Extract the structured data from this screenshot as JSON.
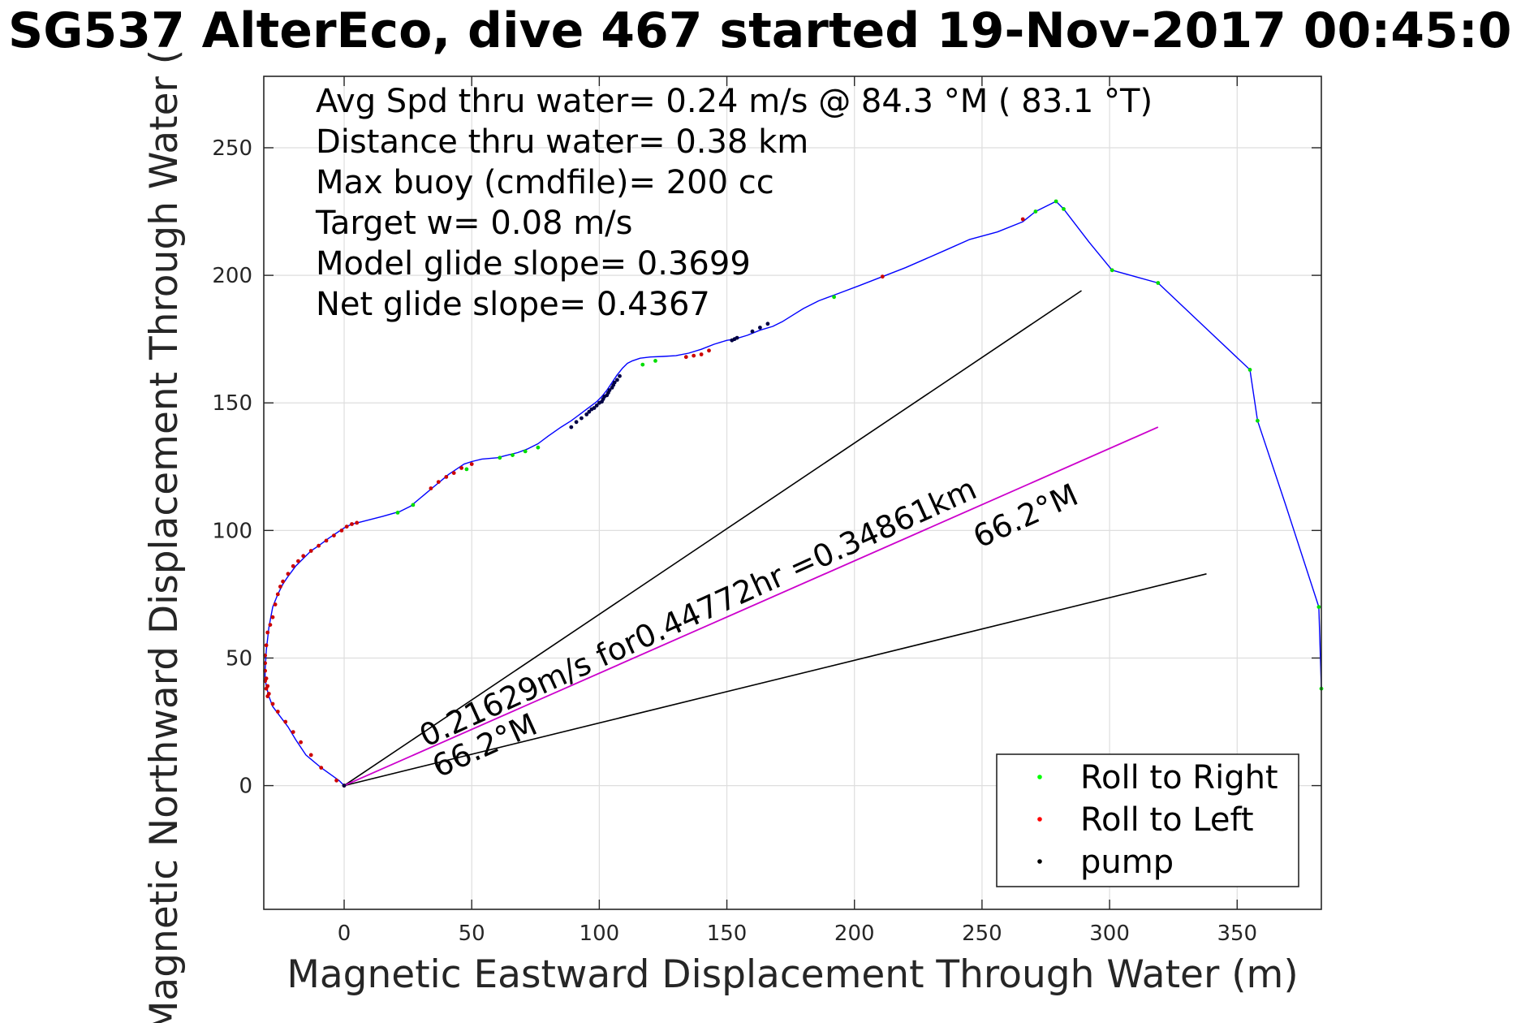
{
  "chart_data": {
    "type": "line",
    "title": "SG537 AlterEco, dive 467 started 19-Nov-2017 00:45:0",
    "xlabel": "Magnetic Eastward Displacement Through Water (m)",
    "ylabel": "Magnetic Northward Displacement Through Water (",
    "xlim": [
      -31.5,
      383
    ],
    "ylim": [
      -48.5,
      278
    ],
    "xticks": [
      0,
      50,
      100,
      150,
      200,
      250,
      300,
      350
    ],
    "yticks": [
      0,
      50,
      100,
      150,
      200,
      250
    ],
    "grid": true,
    "info_lines": [
      "Avg Spd thru water=  0.24 m/s @  84.3 °M ( 83.1 °T)",
      "Distance thru water=  0.38 km",
      "Max buoy (cmdfile)= 200 cc",
      "Target w= 0.08 m/s",
      "Model glide slope= 0.3699",
      "Net glide slope= 0.4367"
    ],
    "annotations": [
      {
        "text": "0.21629m/s for0.44772hr =0.34861km",
        "x": 32,
        "y": 15,
        "angle_deg": -24.4
      },
      {
        "text": "66.2°M",
        "x": 37,
        "y": 3,
        "angle_deg": -24.4
      },
      {
        "text": "66.2°M",
        "x": 249,
        "y": 93,
        "angle_deg": -24.4
      }
    ],
    "legend": {
      "position": "bottom-right",
      "entries": [
        {
          "label": "Roll to Right",
          "color": "#00ff00"
        },
        {
          "label": "Roll to Left",
          "color": "#ff0000"
        },
        {
          "label": "pump",
          "color": "#000000"
        }
      ]
    },
    "colors": {
      "track": "#0000ff",
      "net_heading": "#cc00cc",
      "cone": "#000000"
    },
    "series": [
      {
        "role": "track",
        "x": [
          0,
          -2,
          -9,
          -15,
          -19,
          -22,
          -25,
          -28,
          -29.5,
          -30.5,
          -31,
          -31,
          -30.5,
          -29.5,
          -28,
          -26,
          -24,
          -22,
          -19,
          -16,
          -13,
          -10,
          -6,
          -3,
          0,
          3,
          6,
          15,
          22,
          26,
          29,
          32,
          35,
          38,
          41,
          44,
          47,
          50,
          54,
          60,
          64,
          68,
          72,
          76,
          80,
          85,
          89,
          91,
          93,
          95,
          97,
          99,
          101,
          103,
          105,
          107,
          109,
          111,
          113,
          116,
          120,
          125,
          130,
          135,
          140,
          145,
          150,
          153,
          158,
          163,
          168,
          172,
          176,
          180,
          186,
          194,
          202,
          211,
          220,
          228,
          236,
          245,
          256,
          266,
          271,
          279,
          282,
          292,
          301,
          319,
          337,
          355,
          358,
          369,
          382,
          383
        ],
        "y": [
          0,
          2,
          7,
          12,
          18,
          23,
          27,
          31,
          35,
          39,
          42,
          45,
          53,
          62,
          70,
          75,
          79,
          82,
          86,
          89,
          92,
          94,
          97,
          99,
          101,
          102.5,
          103.2,
          105.5,
          107.5,
          109.5,
          112,
          114.5,
          117,
          119.5,
          122,
          124,
          126,
          127,
          128,
          128.5,
          129.5,
          130.5,
          132,
          134,
          137,
          140.5,
          143,
          144.5,
          146,
          147.5,
          149,
          150.5,
          152.5,
          155,
          158,
          161,
          163.5,
          165.5,
          166.5,
          167.5,
          168,
          168.2,
          168.5,
          169.5,
          171,
          173,
          174.5,
          175,
          176.5,
          178.5,
          180,
          182,
          184.5,
          187,
          190,
          193,
          196,
          199.5,
          203,
          206.5,
          210,
          214,
          217,
          221,
          225,
          229,
          226,
          213,
          202,
          197,
          180,
          163,
          143,
          110,
          70,
          38
        ]
      },
      {
        "role": "roll_right",
        "x": [
          21,
          27,
          48,
          61,
          66,
          71,
          76,
          117,
          122,
          192,
          271,
          279,
          282,
          301,
          319,
          355,
          358,
          382,
          383
        ],
        "y": [
          107,
          110,
          124,
          128.5,
          129.5,
          131,
          132.5,
          165,
          166.5,
          191.5,
          225,
          229,
          226,
          202,
          197,
          163,
          143,
          70,
          38
        ]
      },
      {
        "role": "roll_left",
        "x": [
          -31,
          -31,
          -31,
          -30.5,
          -30.5,
          -30,
          -30,
          -29.5,
          -29,
          -28,
          -27,
          -26,
          -25,
          -24,
          -22,
          -20,
          -18,
          -16,
          -13,
          -10,
          -7,
          -4,
          -1,
          1,
          3,
          5,
          -3,
          -9,
          -13,
          -17,
          -20,
          -23,
          -26,
          -28,
          -30,
          -30.5,
          -31,
          34,
          37,
          40,
          43,
          46,
          50,
          134,
          137,
          140,
          143,
          211,
          266,
          0
        ],
        "y": [
          48,
          51,
          45,
          42,
          55,
          39,
          60,
          36,
          63,
          66,
          71,
          75,
          78,
          80,
          83,
          86,
          88,
          90,
          92,
          94,
          96,
          98,
          100,
          101.5,
          102.5,
          103,
          2,
          7,
          12,
          17,
          21,
          25,
          29,
          32,
          35,
          38,
          41,
          116.5,
          119,
          121,
          122.5,
          124.5,
          126,
          168,
          168.5,
          169,
          170.5,
          199.5,
          222,
          0
        ]
      },
      {
        "role": "pump",
        "x": [
          89,
          91,
          93,
          95,
          96,
          97,
          98,
          99,
          100,
          101,
          101.5,
          102,
          103,
          103.5,
          104,
          105,
          105.5,
          106,
          107,
          108,
          152,
          153,
          154,
          160,
          163,
          166,
          0
        ],
        "y": [
          140.5,
          142.5,
          144,
          145.5,
          146.5,
          147.5,
          148,
          149,
          150,
          150.5,
          151.5,
          152.5,
          153,
          154,
          155,
          156,
          157,
          158,
          159,
          160.5,
          174.5,
          175,
          175.5,
          178,
          179.5,
          181,
          0
        ]
      },
      {
        "role": "net_heading",
        "x": [
          0,
          319
        ],
        "y": [
          0,
          140.5
        ]
      },
      {
        "role": "cone_upper",
        "x": [
          0,
          289
        ],
        "y": [
          0,
          194
        ]
      },
      {
        "role": "cone_lower",
        "x": [
          0,
          338
        ],
        "y": [
          0,
          83
        ]
      }
    ]
  }
}
